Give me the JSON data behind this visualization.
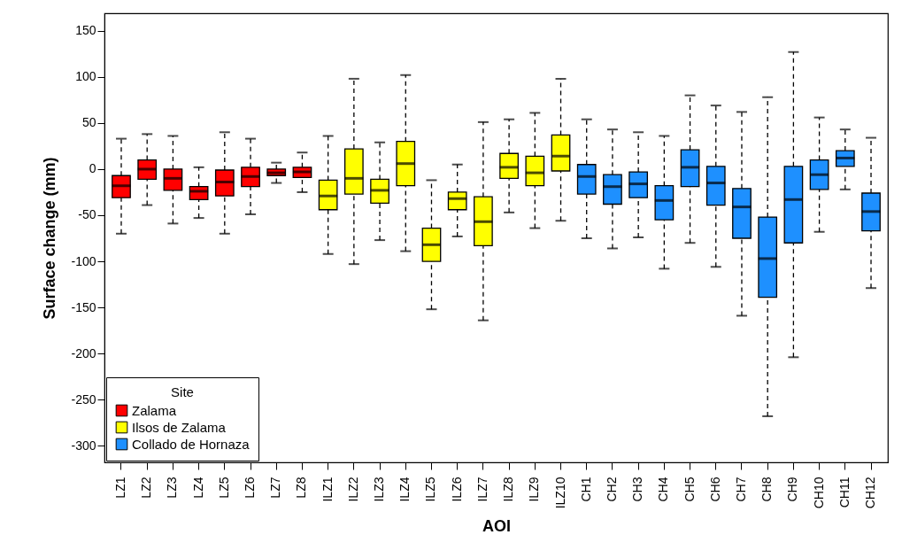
{
  "chart_data": {
    "type": "box",
    "xlabel": "AOI",
    "ylabel": "Surface change (mm)",
    "legend_title": "Site",
    "legend": "bottom left",
    "grid": false,
    "categories": [
      "LZ1",
      "LZ2",
      "LZ3",
      "LZ4",
      "LZ5",
      "LZ6",
      "LZ7",
      "LZ8",
      "ILZ1",
      "ILZ2",
      "ILZ3",
      "ILZ4",
      "ILZ5",
      "ILZ6",
      "ILZ7",
      "ILZ8",
      "ILZ9",
      "ILZ10",
      "CH1",
      "CH2",
      "CH3",
      "CH4",
      "CH5",
      "CH6",
      "CH7",
      "CH8",
      "CH9",
      "CH10",
      "CH11",
      "CH12"
    ],
    "ylim": [
      -318,
      169
    ],
    "yticks": [
      -300,
      -250,
      -200,
      -150,
      -100,
      -50,
      0,
      50,
      100,
      150
    ],
    "series": [
      {
        "name": "Zalama",
        "color": "#ff0000",
        "boxes": [
          {
            "low": -70,
            "q1": -31,
            "median": -18,
            "q3": -7,
            "high": 33
          },
          {
            "low": -39,
            "q1": -11,
            "median": 0,
            "q3": 10,
            "high": 38
          },
          {
            "low": -59,
            "q1": -23,
            "median": -10,
            "q3": 0,
            "high": 36
          },
          {
            "low": -53,
            "q1": -33,
            "median": -24,
            "q3": -19,
            "high": 2
          },
          {
            "low": -70,
            "q1": -29,
            "median": -14,
            "q3": -1,
            "high": 40
          },
          {
            "low": -49,
            "q1": -19,
            "median": -8,
            "q3": 2,
            "high": 33
          },
          {
            "low": -15,
            "q1": -7,
            "median": -4,
            "q3": 0,
            "high": 7
          },
          {
            "low": -25,
            "q1": -9,
            "median": -3,
            "q3": 2,
            "high": 18
          },
          null,
          null,
          null,
          null,
          null,
          null,
          null,
          null,
          null,
          null,
          null,
          null,
          null,
          null,
          null,
          null,
          null,
          null,
          null,
          null,
          null,
          null
        ]
      },
      {
        "name": "Ilsos de Zalama",
        "color": "#ffff00",
        "boxes": [
          null,
          null,
          null,
          null,
          null,
          null,
          null,
          null,
          {
            "low": -92,
            "q1": -44,
            "median": -29,
            "q3": -12,
            "high": 36
          },
          {
            "low": -103,
            "q1": -27,
            "median": -10,
            "q3": 22,
            "high": 98
          },
          {
            "low": -77,
            "q1": -37,
            "median": -23,
            "q3": -11,
            "high": 29
          },
          {
            "low": -89,
            "q1": -18,
            "median": 6,
            "q3": 30,
            "high": 102
          },
          {
            "low": -152,
            "q1": -100,
            "median": -82,
            "q3": -64,
            "high": -12
          },
          {
            "low": -73,
            "q1": -44,
            "median": -32,
            "q3": -25,
            "high": 5
          },
          {
            "low": -164,
            "q1": -83,
            "median": -57,
            "q3": -30,
            "high": 51
          },
          {
            "low": -47,
            "q1": -10,
            "median": 2,
            "q3": 17,
            "high": 54
          },
          {
            "low": -64,
            "q1": -18,
            "median": -4,
            "q3": 14,
            "high": 61
          },
          {
            "low": -56,
            "q1": -2,
            "median": 14,
            "q3": 37,
            "high": 98
          },
          null,
          null,
          null,
          null,
          null,
          null,
          null,
          null,
          null,
          null,
          null,
          null
        ]
      },
      {
        "name": "Collado de Hornaza",
        "color": "#1e90ff",
        "boxes": [
          null,
          null,
          null,
          null,
          null,
          null,
          null,
          null,
          null,
          null,
          null,
          null,
          null,
          null,
          null,
          null,
          null,
          null,
          {
            "low": -75,
            "q1": -27,
            "median": -8,
            "q3": 5,
            "high": 54
          },
          {
            "low": -86,
            "q1": -38,
            "median": -19,
            "q3": -6,
            "high": 43
          },
          {
            "low": -74,
            "q1": -31,
            "median": -16,
            "q3": -3,
            "high": 40
          },
          {
            "low": -108,
            "q1": -55,
            "median": -34,
            "q3": -18,
            "high": 36
          },
          {
            "low": -80,
            "q1": -19,
            "median": 2,
            "q3": 21,
            "high": 80
          },
          {
            "low": -106,
            "q1": -39,
            "median": -15,
            "q3": 3,
            "high": 69
          },
          {
            "low": -159,
            "q1": -75,
            "median": -41,
            "q3": -21,
            "high": 62
          },
          {
            "low": -268,
            "q1": -139,
            "median": -97,
            "q3": -52,
            "high": 78
          },
          {
            "low": -204,
            "q1": -80,
            "median": -33,
            "q3": 3,
            "high": 127
          },
          {
            "low": -68,
            "q1": -22,
            "median": -6,
            "q3": 10,
            "high": 56
          },
          {
            "low": -22,
            "q1": 3,
            "median": 12,
            "q3": 20,
            "high": 43
          },
          {
            "low": -129,
            "q1": -67,
            "median": -46,
            "q3": -26,
            "high": 34
          }
        ]
      }
    ]
  }
}
